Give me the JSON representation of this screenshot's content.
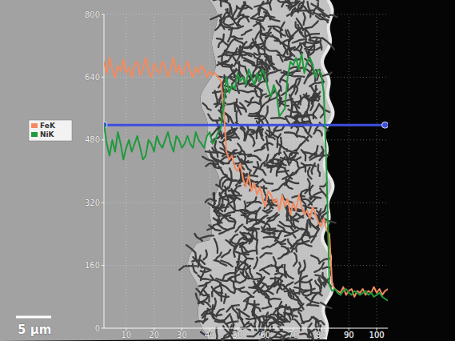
{
  "chart_data": {
    "type": "line",
    "x": [
      2,
      3,
      4,
      5,
      6,
      7,
      8,
      9,
      10,
      11,
      12,
      13,
      14,
      15,
      16,
      17,
      18,
      19,
      20,
      21,
      22,
      23,
      24,
      25,
      26,
      27,
      28,
      29,
      30,
      31,
      32,
      33,
      34,
      35,
      36,
      37,
      38,
      39,
      40,
      41,
      42,
      43,
      44,
      45,
      46,
      47,
      48,
      49,
      50,
      51,
      52,
      53,
      54,
      55,
      56,
      57,
      58,
      59,
      60,
      61,
      62,
      63,
      64,
      65,
      66,
      67,
      68,
      69,
      70,
      71,
      72,
      73,
      74,
      75,
      76,
      77,
      78,
      79,
      80,
      81,
      82,
      83,
      84,
      85,
      86,
      87,
      88,
      89,
      90,
      91,
      92,
      93,
      94,
      95,
      96,
      97,
      98,
      99,
      100,
      101,
      102,
      103,
      104
    ],
    "series": [
      {
        "name": "FeK",
        "color": "#f58a5e",
        "values": [
          680,
          650,
          690,
          660,
          640,
          670,
          655,
          685,
          650,
          665,
          640,
          670,
          680,
          645,
          660,
          690,
          655,
          640,
          675,
          660,
          650,
          680,
          665,
          640,
          660,
          690,
          650,
          670,
          645,
          660,
          680,
          655,
          640,
          665,
          650,
          670,
          660,
          640,
          655,
          645,
          650,
          640,
          630,
          560,
          450,
          430,
          440,
          410,
          400,
          420,
          380,
          360,
          390,
          350,
          370,
          340,
          360,
          330,
          310,
          350,
          340,
          320,
          330,
          300,
          340,
          310,
          330,
          290,
          320,
          300,
          340,
          310,
          290,
          300,
          280,
          310,
          290,
          270,
          260,
          280,
          250,
          240,
          110,
          100,
          95,
          90,
          105,
          85,
          95,
          100,
          80,
          95,
          90,
          100,
          85,
          95,
          90,
          105,
          90,
          100,
          85,
          95,
          100
        ]
      },
      {
        "name": "NiK",
        "color": "#1f9a3c",
        "values": [
          520,
          470,
          440,
          480,
          450,
          500,
          470,
          430,
          460,
          480,
          450,
          470,
          490,
          460,
          430,
          440,
          480,
          470,
          450,
          490,
          470,
          460,
          480,
          500,
          470,
          450,
          490,
          480,
          460,
          470,
          490,
          470,
          460,
          500,
          480,
          470,
          460,
          490,
          500,
          470,
          480,
          500,
          510,
          570,
          640,
          600,
          620,
          610,
          650,
          630,
          640,
          620,
          660,
          640,
          620,
          650,
          630,
          660,
          640,
          610,
          590,
          620,
          600,
          540,
          550,
          560,
          640,
          680,
          670,
          690,
          660,
          700,
          650,
          680,
          690,
          670,
          640,
          660,
          650,
          600,
          400,
          110,
          95,
          100,
          90,
          85,
          95,
          100,
          90,
          85,
          95,
          90,
          85,
          90,
          95,
          85,
          90,
          80,
          85,
          90,
          80,
          75,
          70
        ]
      }
    ],
    "xlim": [
      2,
      104
    ],
    "ylim": [
      0,
      800
    ],
    "xticks": [
      10,
      20,
      30,
      40,
      50,
      60,
      70,
      80,
      90,
      100
    ],
    "yticks": [
      0,
      160,
      320,
      480,
      640,
      800
    ],
    "grid": true,
    "legend": "left",
    "scan_line": {
      "x": [
        2,
        103
      ],
      "y": 518,
      "color": "#3d4fe0"
    },
    "scale_bar": {
      "label": "5 µm"
    }
  }
}
